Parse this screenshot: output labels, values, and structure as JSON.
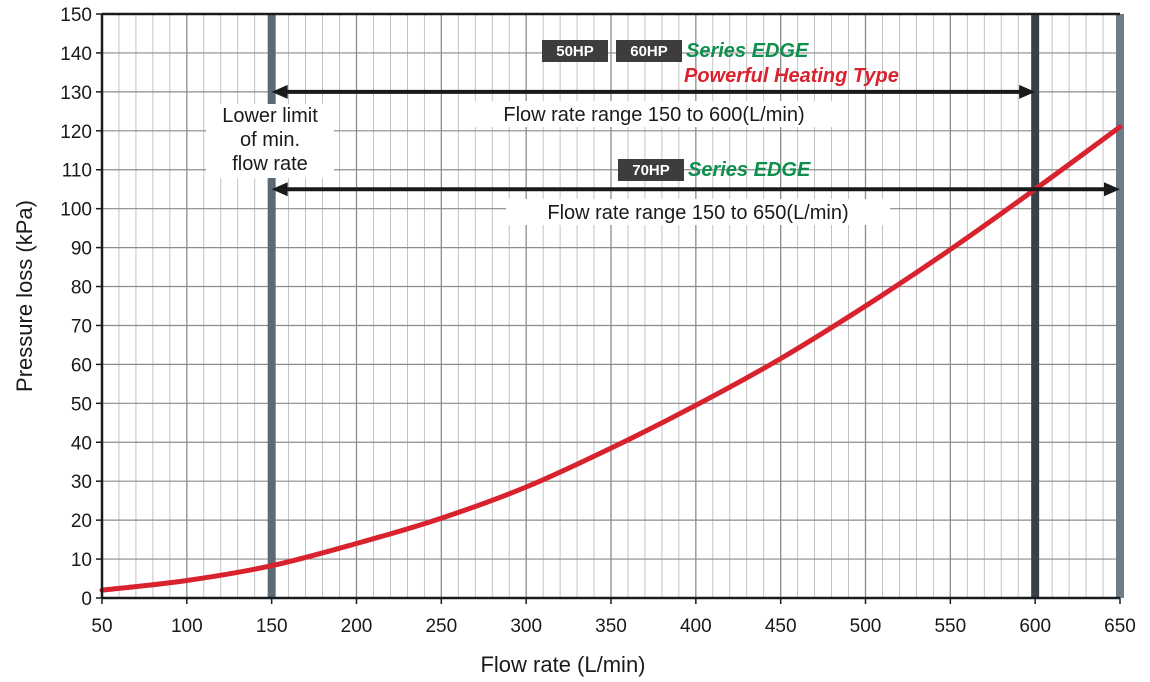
{
  "chart_data": {
    "type": "line",
    "xlabel": "Flow rate (L/min)",
    "ylabel": "Pressure loss (kPa)",
    "xlim": [
      50,
      650
    ],
    "ylim": [
      0,
      150
    ],
    "x_ticks": [
      50,
      100,
      150,
      200,
      250,
      300,
      350,
      400,
      450,
      500,
      550,
      600,
      650
    ],
    "y_ticks": [
      0,
      10,
      20,
      30,
      40,
      50,
      60,
      70,
      80,
      90,
      100,
      110,
      120,
      130,
      140,
      150
    ],
    "grid": true,
    "series": [
      {
        "color": "#d8232f",
        "x": [
          50,
          100,
          150,
          200,
          250,
          300,
          350,
          400,
          450,
          500,
          550,
          600,
          650
        ],
        "y": [
          2,
          4.5,
          8.3,
          14,
          20.5,
          28.5,
          38.5,
          49.5,
          61.5,
          75,
          89.5,
          105,
          121
        ]
      }
    ],
    "vertical_lines": [
      {
        "x": 150,
        "color": "#5d6a76"
      },
      {
        "x": 600,
        "color": "#3a4048"
      },
      {
        "x": 650,
        "color": "#6e7c88"
      }
    ],
    "annotations": {
      "lower_limit": [
        "Lower limit",
        "of min.",
        "flow rate"
      ],
      "range_60": {
        "badges": [
          "50HP",
          "60HP"
        ],
        "series_name": "Series EDGE",
        "subtitle": "Powerful Heating Type",
        "text": "Flow rate range 150 to 600(L/min)",
        "from": 150,
        "to": 600,
        "arrow_y": 130
      },
      "range_70": {
        "badges": [
          "70HP"
        ],
        "series_name": "Series EDGE",
        "text": "Flow rate range 150 to 650(L/min)",
        "from": 150,
        "to": 650,
        "arrow_y": 105
      }
    },
    "colors": {
      "curve": "#d8232f",
      "series_green": "#0e8f4e",
      "series_red": "#d8232f",
      "badge": "#3d3d3d",
      "grid": "#b4b4b4",
      "frame": "#1a1a1a"
    }
  }
}
